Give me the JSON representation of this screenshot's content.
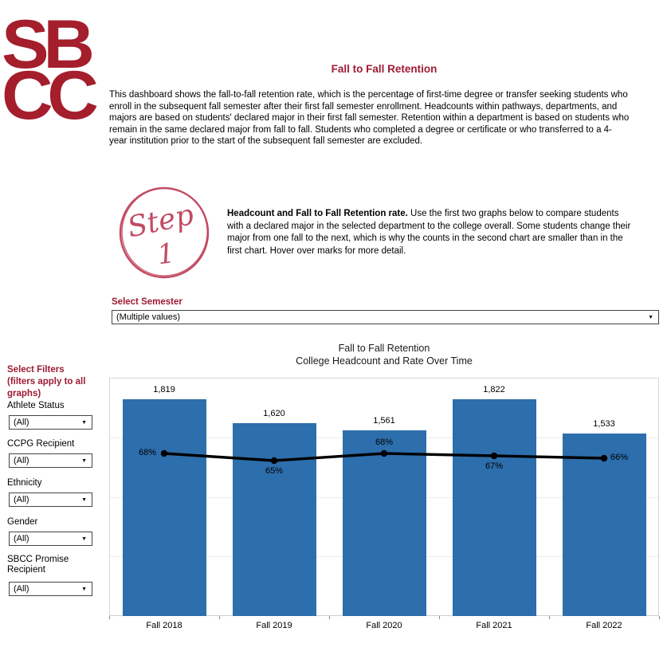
{
  "logo": {
    "line1": "SB",
    "line2": "CC"
  },
  "header": {
    "title": "Fall to Fall Retention",
    "desc_lines": [
      "This dashboard shows the fall-to-fall retention rate, which is the percentage of first-time degree or transfer seeking students who",
      "enroll in the subsequent fall semester after their first fall semester enrollment. Headcounts within pathways, departments, and",
      "majors are based on students' declared major in their first fall semester. Retention within a department is based on students who",
      "remain in the same declared major from fall to fall. Students who completed a degree or certificate or who transferred to a 4-",
      "year institution prior to the start of the subsequent fall semester are excluded."
    ]
  },
  "step": {
    "badge_word": "Step",
    "badge_number": "1",
    "badge_color": "#C24B63",
    "lead": "Headcount and Fall to Fall Retention rate.",
    "line1_rest": " Use the first two graphs below to compare students",
    "lines": [
      "with a declared major in the selected department to the college overall. Some students change their",
      "major from one fall to the next, which is why the counts in the second chart are smaller than in the",
      "first chart. Hover over marks for more detail."
    ]
  },
  "semester_filter": {
    "label": "Select Semester",
    "value": "(Multiple values)"
  },
  "sidebar": {
    "header_lines": [
      "Select Filters",
      "(filters apply to all",
      "graphs)"
    ],
    "filters": [
      {
        "label": "Athlete Status",
        "value": "(All)"
      },
      {
        "label": "CCPG Recipient",
        "value": "(All)"
      },
      {
        "label": "Ethnicity",
        "value": "(All)"
      },
      {
        "label": "Gender",
        "value": "(All)"
      },
      {
        "label": "SBCC Promise Recipient",
        "value": "(All)"
      }
    ]
  },
  "ui": {
    "icons": {
      "chevron_down": "▼"
    },
    "accent_red": "#9E1B32",
    "logo_red": "#A41E2C"
  },
  "chart_data": {
    "type": "bar",
    "title": "Fall to Fall Retention",
    "subtitle": "College Headcount and Rate Over Time",
    "categories": [
      "Fall 2018",
      "Fall 2019",
      "Fall 2020",
      "Fall 2021",
      "Fall 2022"
    ],
    "series": [
      {
        "name": "College Headcount",
        "kind": "bar",
        "values": [
          1819,
          1620,
          1561,
          1822,
          1533
        ],
        "labels": [
          "1,819",
          "1,620",
          "1,561",
          "1,822",
          "1,533"
        ],
        "color": "#2D6EAC"
      },
      {
        "name": "Fall to Fall Retention Rate",
        "kind": "line",
        "values": [
          68,
          65,
          68,
          67,
          66
        ],
        "labels": [
          "68%",
          "65%",
          "68%",
          "67%",
          "66%"
        ],
        "color": "#000000"
      }
    ],
    "label_positions": [
      "left",
      "below",
      "above",
      "below",
      "right"
    ],
    "xlabel": "",
    "ylabel": "",
    "ylim": [
      0,
      2000
    ],
    "rate_ylim": [
      0,
      100
    ],
    "gridlines": [
      500,
      1000,
      1500
    ],
    "grid_on": true,
    "legend_position": "none"
  }
}
